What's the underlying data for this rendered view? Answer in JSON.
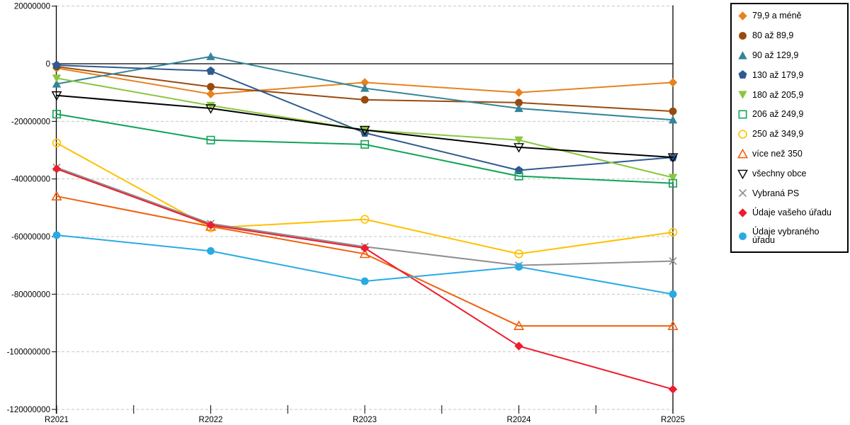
{
  "chart_data": {
    "type": "line",
    "title": "",
    "xlabel": "",
    "ylabel": "",
    "categories": [
      "R2021",
      "R2022",
      "R2023",
      "R2024",
      "R2025"
    ],
    "y_ticks": [
      20000000,
      0,
      -20000000,
      -40000000,
      -60000000,
      -80000000,
      -100000000,
      -120000000
    ],
    "ylim": [
      -120000000,
      20000000
    ],
    "grid": "horizontal-dashed",
    "legend_position": "top-right-outside",
    "series": [
      {
        "id": "79-9-a-mene",
        "name": "79,9 a méně",
        "color": "#E8821E",
        "marker": "diamond",
        "filled": true,
        "values": [
          -1500000,
          -10500000,
          -6500000,
          -10000000,
          -6500000
        ]
      },
      {
        "id": "80-az-89-9",
        "name": "80 až 89,9",
        "color": "#9A4A0D",
        "marker": "circle",
        "filled": true,
        "values": [
          -1000000,
          -8000000,
          -12500000,
          -13500000,
          -16500000
        ]
      },
      {
        "id": "90-az-129-9",
        "name": "90 až 129,9",
        "color": "#34859B",
        "marker": "triangle-up",
        "filled": true,
        "values": [
          -7000000,
          2500000,
          -8500000,
          -15500000,
          -19500000
        ]
      },
      {
        "id": "130-az-179-9",
        "name": "130 až 179,9",
        "color": "#2E5A8F",
        "marker": "pentagon",
        "filled": true,
        "values": [
          -500000,
          -2500000,
          -24000000,
          -37000000,
          -32500000
        ]
      },
      {
        "id": "180-az-205-9",
        "name": "180 až 205,9",
        "color": "#8CC63F",
        "marker": "triangle-down",
        "filled": true,
        "values": [
          -5000000,
          -14500000,
          -23000000,
          -26500000,
          -39500000
        ]
      },
      {
        "id": "206-az-249-9",
        "name": "206 až 249,9",
        "color": "#10A458",
        "marker": "square",
        "filled": false,
        "values": [
          -17500000,
          -26500000,
          -28000000,
          -39000000,
          -41500000
        ]
      },
      {
        "id": "250-az-349-9",
        "name": "250 až 349,9",
        "color": "#FFC000",
        "marker": "circle",
        "filled": false,
        "values": [
          -27500000,
          -57000000,
          -54000000,
          -66000000,
          -58500000
        ]
      },
      {
        "id": "vice-nez-350",
        "name": "více než 350",
        "color": "#F2610D",
        "marker": "triangle-up",
        "filled": false,
        "values": [
          -46000000,
          -56500000,
          -66000000,
          -91000000,
          -91000000
        ]
      },
      {
        "id": "vsechny-obce",
        "name": "všechny obce",
        "color": "#000000",
        "marker": "triangle-down",
        "filled": false,
        "values": [
          -11000000,
          -15500000,
          -23000000,
          -29000000,
          -32500000
        ]
      },
      {
        "id": "vybrana-ps",
        "name": "Vybraná PS",
        "color": "#8F8F8F",
        "marker": "x",
        "filled": false,
        "values": [
          -36000000,
          -55500000,
          -63500000,
          -70000000,
          -68500000
        ]
      },
      {
        "id": "udaje-vaseho-uradu",
        "name": "Údaje vašeho úřadu",
        "color": "#ED1C2E",
        "marker": "diamond",
        "filled": true,
        "values": [
          -36500000,
          -56000000,
          -64000000,
          -98000000,
          -113000000
        ]
      },
      {
        "id": "udaje-vybraneho-uradu",
        "name": "Údaje vybraného úřadu",
        "color": "#29ABE2",
        "marker": "circle",
        "filled": true,
        "values": [
          -59500000,
          -65000000,
          -75500000,
          -70500000,
          -80000000
        ]
      }
    ]
  }
}
